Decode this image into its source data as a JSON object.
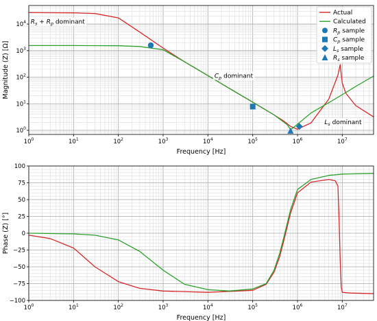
{
  "colors": {
    "actual": "#d62728",
    "calculated": "#2ca02c",
    "marker": "#1f77b4",
    "grid": "#b0b0b0"
  },
  "legend": {
    "actual": "Actual",
    "calculated": "Calculated",
    "rp_sample": {
      "sym": "R",
      "sub": "p",
      "rest": " sample"
    },
    "cp_sample": {
      "sym": "C",
      "sub": "p",
      "rest": " sample"
    },
    "ls_sample": {
      "sym": "L",
      "sub": "s",
      "rest": " sample"
    },
    "rs_sample": {
      "sym": "R",
      "sub": "s",
      "rest": " sample"
    }
  },
  "chart_data": [
    {
      "type": "line",
      "title": "",
      "xlabel": "Frequency [Hz]",
      "ylabel": "Magnitude (Z) [Ω]",
      "xscale": "log",
      "yscale": "log",
      "xlim": [
        1,
        50000000
      ],
      "ylim": [
        0.7,
        50000
      ],
      "grid": true,
      "legend_position": "top-right",
      "x_tick_labels": [
        {
          "base": "10",
          "exp": "0"
        },
        {
          "base": "10",
          "exp": "1"
        },
        {
          "base": "10",
          "exp": "2"
        },
        {
          "base": "10",
          "exp": "3"
        },
        {
          "base": "10",
          "exp": "4"
        },
        {
          "base": "10",
          "exp": "5"
        },
        {
          "base": "10",
          "exp": "6"
        },
        {
          "base": "10",
          "exp": "7"
        }
      ],
      "y_tick_labels": [
        {
          "base": "10",
          "exp": "0"
        },
        {
          "base": "10",
          "exp": "1"
        },
        {
          "base": "10",
          "exp": "2"
        },
        {
          "base": "10",
          "exp": "3"
        },
        {
          "base": "10",
          "exp": "4"
        }
      ],
      "series": [
        {
          "name": "Actual",
          "x": [
            1,
            10,
            30,
            100,
            300,
            1000,
            3000,
            10000,
            30000,
            100000,
            300000,
            500000,
            700000,
            1000000,
            2000000,
            5000000,
            8000000,
            9000000,
            10000000,
            12000000,
            20000000,
            50000000
          ],
          "y": [
            27000,
            26500,
            25000,
            17000,
            5000,
            1250,
            380,
            115,
            38,
            11.5,
            3.8,
            2.2,
            1.4,
            1.1,
            1.9,
            15,
            120,
            300,
            60,
            25,
            8.5,
            3.2
          ]
        },
        {
          "name": "Calculated",
          "x": [
            1,
            10,
            100,
            300,
            1000,
            3000,
            10000,
            30000,
            100000,
            300000,
            600000,
            700000,
            1000000,
            2000000,
            5000000,
            10000000,
            20000000,
            50000000
          ],
          "y": [
            1550,
            1550,
            1530,
            1430,
            1080,
            380,
            115,
            38,
            11.5,
            3.8,
            1.6,
            1.05,
            1.7,
            4.5,
            11,
            22,
            45,
            110
          ]
        }
      ],
      "markers": [
        {
          "shape": "circle",
          "x": 530,
          "y": 1580
        },
        {
          "shape": "square",
          "x": 100000,
          "y": 7.8
        },
        {
          "shape": "diamond",
          "x": 1100000,
          "y": 1.4
        },
        {
          "shape": "triangle",
          "x": 700000,
          "y": 0.95
        }
      ],
      "annotations": [
        {
          "parts": [
            {
              "t": "R"
            },
            {
              "t": "s",
              "sub": true
            },
            {
              "t": " + "
            },
            {
              "t": "R"
            },
            {
              "t": "p",
              "sub": true
            },
            {
              "t": " dominant"
            }
          ],
          "x": 1.1,
          "y": 10500
        },
        {
          "parts": [
            {
              "t": "C"
            },
            {
              "t": "p",
              "sub": true
            },
            {
              "t": " dominant"
            }
          ],
          "x": 14000,
          "y": 95
        },
        {
          "parts": [
            {
              "t": "L"
            },
            {
              "t": "s",
              "sub": true
            },
            {
              "t": " dominant"
            }
          ],
          "x": 4000000,
          "y": 1.7
        }
      ]
    },
    {
      "type": "line",
      "title": "",
      "xlabel": "Frequency [Hz]",
      "ylabel": "Phase (Z) [°]",
      "xscale": "log",
      "xlim": [
        1,
        50000000
      ],
      "ylim": [
        -100,
        100
      ],
      "grid": true,
      "x_tick_labels": [
        {
          "base": "10",
          "exp": "0"
        },
        {
          "base": "10",
          "exp": "1"
        },
        {
          "base": "10",
          "exp": "2"
        },
        {
          "base": "10",
          "exp": "3"
        },
        {
          "base": "10",
          "exp": "4"
        },
        {
          "base": "10",
          "exp": "5"
        },
        {
          "base": "10",
          "exp": "6"
        },
        {
          "base": "10",
          "exp": "7"
        }
      ],
      "y_ticks": [
        100,
        75,
        50,
        25,
        0,
        -25,
        -50,
        -75,
        -100
      ],
      "series": [
        {
          "name": "Actual",
          "x": [
            1,
            3,
            10,
            30,
            100,
            300,
            1000,
            10000,
            100000,
            200000,
            300000,
            400000,
            500000,
            700000,
            1000000,
            2000000,
            5000000,
            7000000,
            8000000,
            8500000,
            9000000,
            9500000,
            10000000,
            15000000,
            50000000
          ],
          "y": [
            -3,
            -8,
            -22,
            -50,
            -72,
            -82,
            -86,
            -88,
            -85,
            -76,
            -58,
            -35,
            -10,
            30,
            60,
            76,
            80,
            78,
            70,
            20,
            -40,
            -80,
            -88,
            -89,
            -90
          ]
        },
        {
          "name": "Calculated",
          "x": [
            1,
            10,
            30,
            100,
            300,
            1000,
            3000,
            10000,
            30000,
            100000,
            200000,
            300000,
            400000,
            500000,
            700000,
            1000000,
            2000000,
            5000000,
            10000000,
            50000000
          ],
          "y": [
            0,
            -1,
            -3,
            -10,
            -27,
            -55,
            -76,
            -84,
            -86,
            -83,
            -75,
            -55,
            -30,
            -5,
            35,
            65,
            80,
            86,
            88,
            89
          ]
        }
      ]
    }
  ]
}
